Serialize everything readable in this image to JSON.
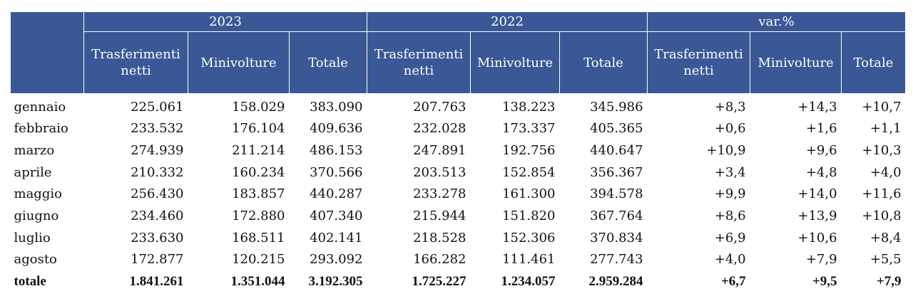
{
  "header": {
    "years": [
      "2023",
      "2022",
      "var.%"
    ],
    "columns": [
      "Trasferimenti netti",
      "Minivolture",
      "Totale",
      "Trasferimenti netti",
      "Minivolture",
      "Totale",
      "Trasferimenti netti",
      "Minivolture",
      "Totale"
    ]
  },
  "rows": [
    {
      "month": "gennaio",
      "values": [
        "225.061",
        "158.029",
        "383.090",
        "207.763",
        "138.223",
        "345.986",
        "+8,3",
        "+14,3",
        "+10,7"
      ]
    },
    {
      "month": "febbraio",
      "values": [
        "233.532",
        "176.104",
        "409.636",
        "232.028",
        "173.337",
        "405.365",
        "+0,6",
        "+1,6",
        "+1,1"
      ]
    },
    {
      "month": "marzo",
      "values": [
        "274.939",
        "211.214",
        "486.153",
        "247.891",
        "192.756",
        "440.647",
        "+10,9",
        "+9,6",
        "+10,3"
      ]
    },
    {
      "month": "aprile",
      "values": [
        "210.332",
        "160.234",
        "370.566",
        "203.513",
        "152.854",
        "356.367",
        "+3,4",
        "+4,8",
        "+4,0"
      ]
    },
    {
      "month": "maggio",
      "values": [
        "256.430",
        "183.857",
        "440.287",
        "233.278",
        "161.300",
        "394.578",
        "+9,9",
        "+14,0",
        "+11,6"
      ]
    },
    {
      "month": "giugno",
      "values": [
        "234.460",
        "172.880",
        "407.340",
        "215.944",
        "151.820",
        "367.764",
        "+8,6",
        "+13,9",
        "+10,8"
      ]
    },
    {
      "month": "luglio",
      "values": [
        "233.630",
        "168.511",
        "402.141",
        "218.528",
        "152.306",
        "370.834",
        "+6,9",
        "+10,6",
        "+8,4"
      ]
    },
    {
      "month": "agosto",
      "values": [
        "172.877",
        "120.215",
        "293.092",
        "166.282",
        "111.461",
        "277.743",
        "+4,0",
        "+7,9",
        "+5,5"
      ]
    }
  ],
  "total": {
    "month": "totale",
    "values": [
      "1.841.261",
      "1.351.044",
      "3.192.305",
      "1.725.227",
      "1.234.057",
      "2.959.284",
      "+6,7",
      "+9,5",
      "+7,9"
    ]
  },
  "colors": {
    "header_bg": "#3a5895",
    "header_text": "#ffffff"
  }
}
